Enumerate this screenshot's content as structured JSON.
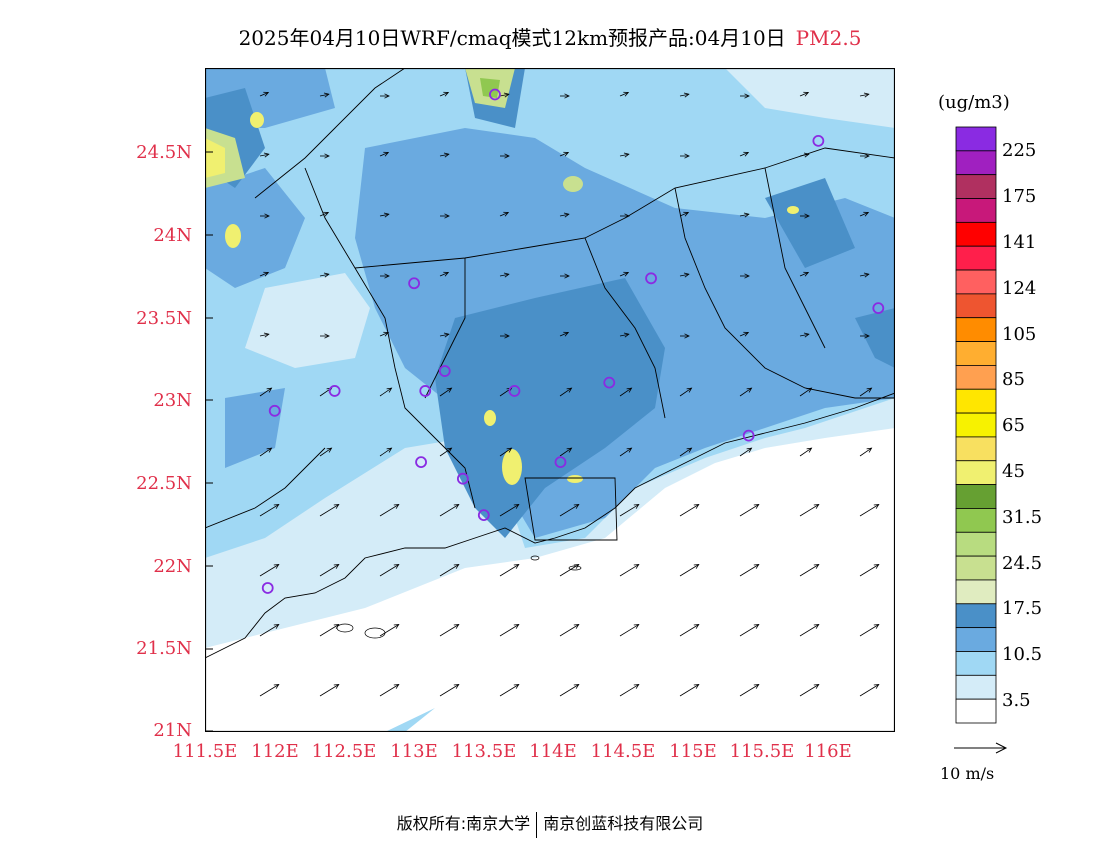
{
  "title": "2025年04月10日WRF/cmaq模式12km预报产品:04月10日",
  "pollutant": "PM2.5",
  "latitude_labels": [
    "24.5N",
    "24N",
    "23.5N",
    "23N",
    "22.5N",
    "22N",
    "21.5N",
    "21N"
  ],
  "longitude_labels": [
    "111.5E",
    "112E",
    "112.5E",
    "113E",
    "113.5E",
    "114E",
    "114.5E",
    "115E",
    "115.5E",
    "116E"
  ],
  "colorbar": {
    "unit": "(ug/m3)",
    "labels": [
      "225",
      "175",
      "141",
      "124",
      "105",
      "85",
      "65",
      "45",
      "31.5",
      "24.5",
      "17.5",
      "10.5",
      "3.5"
    ],
    "colors": [
      "#8a2be2",
      "#a020c0",
      "#b03060",
      "#c8187a",
      "#ff0000",
      "#ff1f4b",
      "#ff6060",
      "#ee5530",
      "#ff8c00",
      "#ffae30",
      "#ffa050",
      "#ffe600",
      "#f7f200",
      "#f8e060",
      "#f0f070",
      "#66a032",
      "#90c850",
      "#b8dc80",
      "#c8e090",
      "#e0ecc0",
      "#4a90c8",
      "#6aaae0",
      "#a0d8f4",
      "#d4ecf8",
      "#ffffff"
    ]
  },
  "wind_reference": "10 m/s",
  "stations": [
    {
      "lon": 112.0,
      "lat": 22.93
    },
    {
      "lon": 112.43,
      "lat": 23.05
    },
    {
      "lon": 113.0,
      "lat": 23.7
    },
    {
      "lon": 113.08,
      "lat": 23.05
    },
    {
      "lon": 113.22,
      "lat": 23.17
    },
    {
      "lon": 113.72,
      "lat": 23.05
    },
    {
      "lon": 114.4,
      "lat": 23.1
    },
    {
      "lon": 113.05,
      "lat": 22.62
    },
    {
      "lon": 113.35,
      "lat": 22.52
    },
    {
      "lon": 113.5,
      "lat": 22.3
    },
    {
      "lon": 114.05,
      "lat": 22.62
    },
    {
      "lon": 111.95,
      "lat": 21.86
    },
    {
      "lon": 114.7,
      "lat": 23.73
    },
    {
      "lon": 113.58,
      "lat": 24.84
    },
    {
      "lon": 116.33,
      "lat": 23.55
    },
    {
      "lon": 115.9,
      "lat": 24.56
    },
    {
      "lon": 115.4,
      "lat": 22.78
    }
  ],
  "footer": {
    "left": "版权所有:南京大学",
    "right": "南京创蓝科技有限公司"
  }
}
